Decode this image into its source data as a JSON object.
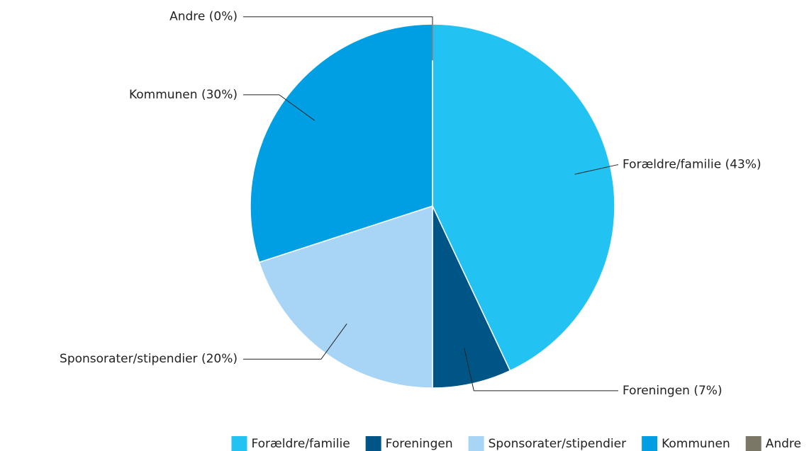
{
  "chart_data": {
    "type": "pie",
    "categories": [
      "Forældre/familie",
      "Foreningen",
      "Sponsorater/stipendier",
      "Kommunen",
      "Andre"
    ],
    "values": [
      43,
      7,
      20,
      30,
      0
    ],
    "value_labels": [
      "Forældre/familie (43%)",
      "Foreningen (7%)",
      "Sponsorater/stipendier (20%)",
      "Kommunen (30%)",
      "Andre (0%)"
    ],
    "colors": [
      "#22c3f3",
      "#005587",
      "#a8d5f5",
      "#009fe3",
      "#7a7766"
    ],
    "legend": "bottom"
  }
}
